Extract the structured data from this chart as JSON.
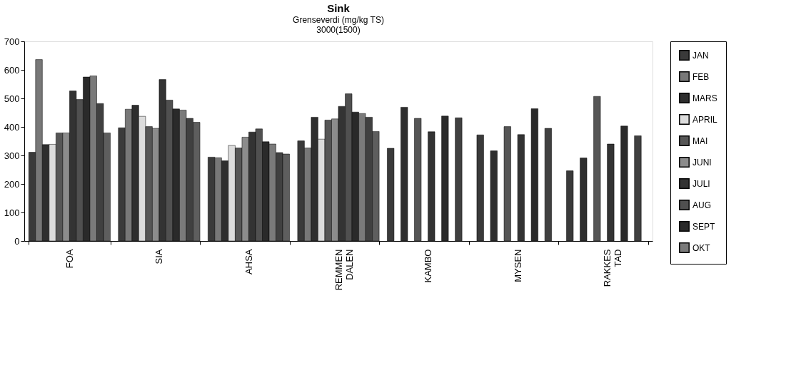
{
  "chart_data": {
    "type": "bar",
    "title": "Sink",
    "subtitle": [
      "Grenseverdi (mg/kg TS)",
      "3000(1500)"
    ],
    "categories": [
      "FOA",
      "SIA",
      "AHSA",
      "REMMEN\nDALEN",
      "KAMBO",
      "MYSEN",
      "RAKKES\nTAD"
    ],
    "series": [
      {
        "name": "JAN",
        "color": "#3a3a3a",
        "values": [
          311,
          397,
          294,
          351,
          325,
          372,
          246
        ]
      },
      {
        "name": "FEB",
        "color": "#787878",
        "values": [
          636,
          462,
          292,
          326,
          null,
          null,
          null
        ]
      },
      {
        "name": "MARS",
        "color": "#2e2e2e",
        "values": [
          338,
          476,
          281,
          434,
          469,
          316,
          291
        ]
      },
      {
        "name": "APRIL",
        "color": "#dcdcdc",
        "values": [
          339,
          437,
          335,
          357,
          null,
          null,
          null
        ]
      },
      {
        "name": "MAI",
        "color": "#565656",
        "values": [
          379,
          401,
          326,
          424,
          430,
          401,
          507
        ]
      },
      {
        "name": "JUNI",
        "color": "#8c8c8c",
        "values": [
          379,
          395,
          364,
          428,
          null,
          null,
          null
        ]
      },
      {
        "name": "JULI",
        "color": "#333333",
        "values": [
          526,
          566,
          382,
          472,
          383,
          373,
          340
        ]
      },
      {
        "name": "AUG",
        "color": "#505050",
        "values": [
          496,
          494,
          393,
          516,
          null,
          null,
          null
        ]
      },
      {
        "name": "SEPT",
        "color": "#2a2a2a",
        "values": [
          575,
          463,
          348,
          452,
          438,
          464,
          403
        ]
      },
      {
        "name": "OKT",
        "color": "#7a7a7a",
        "values": [
          579,
          459,
          340,
          447,
          null,
          null,
          null
        ]
      },
      {
        "color": "#404040",
        "values": [
          482,
          430,
          310,
          434,
          432,
          395,
          369
        ]
      },
      {
        "color": "#5e5e5e",
        "values": [
          379,
          416,
          305,
          384,
          null,
          null,
          null
        ]
      }
    ],
    "ylim": [
      0,
      700
    ],
    "yticks": [
      0,
      100,
      200,
      300,
      400,
      500,
      600,
      700
    ],
    "grid": false,
    "legend": "right"
  }
}
